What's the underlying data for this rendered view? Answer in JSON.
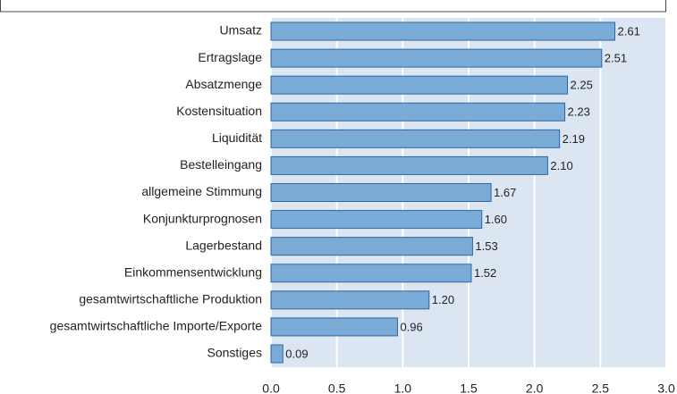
{
  "chart_data": {
    "type": "hbar",
    "categories": [
      "Umsatz",
      "Ertragslage",
      "Absatzmenge",
      "Kostensituation",
      "Liquidität",
      "Bestelleingang",
      "allgemeine Stimmung",
      "Konjunkturprognosen",
      "Lagerbestand",
      "Einkommensentwicklung",
      "gesamtwirtschaftliche Produktion",
      "gesamtwirtschaftliche Importe/Exporte",
      "Sonstiges"
    ],
    "values": [
      2.61,
      2.51,
      2.25,
      2.23,
      2.19,
      2.1,
      1.67,
      1.6,
      1.53,
      1.52,
      1.2,
      0.96,
      0.09
    ],
    "value_labels": [
      "2.61",
      "2.51",
      "2.25",
      "2.23",
      "2.19",
      "2.10",
      "1.67",
      "1.60",
      "1.53",
      "1.52",
      "1.20",
      "0.96",
      "0.09"
    ],
    "color": "#7aaad6",
    "xlim": [
      0,
      3
    ],
    "xticks": [
      {
        "value": 0,
        "label": "0.0"
      },
      {
        "value": 0.5,
        "label": "0.5"
      },
      {
        "value": 1,
        "label": "1.0"
      },
      {
        "value": 1.5,
        "label": "1.5"
      },
      {
        "value": 2,
        "label": "2.0"
      },
      {
        "value": 2.5,
        "label": "2.5"
      },
      {
        "value": 3,
        "label": "3.0"
      }
    ],
    "grid": true
  }
}
